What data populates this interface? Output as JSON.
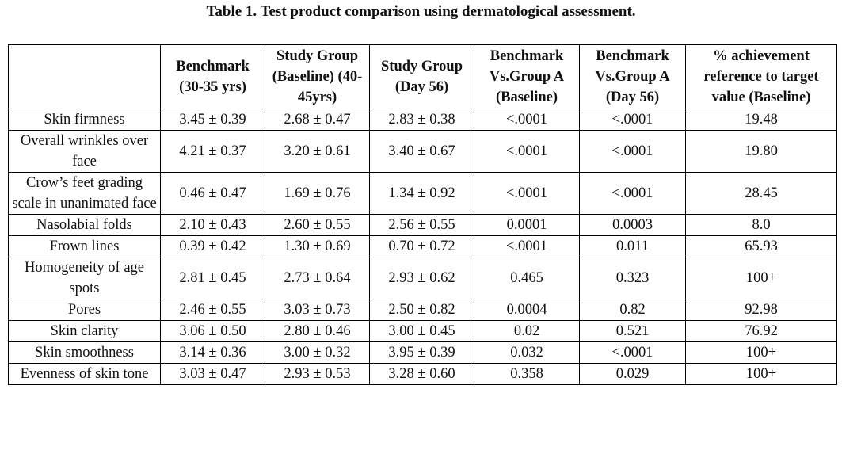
{
  "caption": "Table 1. Test product comparison using dermatological assessment.",
  "columns": [
    "",
    "Benchmark (30-35 yrs)",
    "Study Group (Baseline) (40-45yrs)",
    "Study Group (Day 56)",
    "Benchmark Vs.Group A (Baseline)",
    "Benchmark Vs.Group A (Day 56)",
    "% achievement reference to target value (Baseline)"
  ],
  "rows": [
    {
      "parameter": "Skin firmness",
      "benchmark": "3.45 ± 0.39",
      "baseline": "2.68 ± 0.47",
      "day56": "2.83 ± 0.38",
      "p_baseline": "<.0001",
      "p_day56": "<.0001",
      "achievement": "19.48"
    },
    {
      "parameter": "Overall wrinkles over face",
      "benchmark": "4.21 ± 0.37",
      "baseline": "3.20 ± 0.61",
      "day56": "3.40 ± 0.67",
      "p_baseline": "<.0001",
      "p_day56": "<.0001",
      "achievement": "19.80"
    },
    {
      "parameter": "Crow’s feet grading scale in unanimated face",
      "benchmark": "0.46 ± 0.47",
      "baseline": "1.69 ± 0.76",
      "day56": "1.34 ± 0.92",
      "p_baseline": "<.0001",
      "p_day56": "<.0001",
      "achievement": "28.45"
    },
    {
      "parameter": "Nasolabial folds",
      "benchmark": "2.10 ± 0.43",
      "baseline": "2.60 ± 0.55",
      "day56": "2.56 ± 0.55",
      "p_baseline": "0.0001",
      "p_day56": "0.0003",
      "achievement": "8.0"
    },
    {
      "parameter": "Frown lines",
      "benchmark": "0.39 ± 0.42",
      "baseline": "1.30 ± 0.69",
      "day56": "0.70 ± 0.72",
      "p_baseline": "<.0001",
      "p_day56": "0.011",
      "achievement": "65.93"
    },
    {
      "parameter": "Homogeneity of age spots",
      "benchmark": "2.81 ± 0.45",
      "baseline": "2.73 ± 0.64",
      "day56": "2.93 ± 0.62",
      "p_baseline": "0.465",
      "p_day56": "0.323",
      "achievement": "100+"
    },
    {
      "parameter": "Pores",
      "benchmark": "2.46 ± 0.55",
      "baseline": "3.03 ± 0.73",
      "day56": "2.50 ± 0.82",
      "p_baseline": "0.0004",
      "p_day56": "0.82",
      "achievement": "92.98"
    },
    {
      "parameter": "Skin clarity",
      "benchmark": "3.06 ± 0.50",
      "baseline": "2.80 ± 0.46",
      "day56": "3.00 ± 0.45",
      "p_baseline": "0.02",
      "p_day56": "0.521",
      "achievement": "76.92"
    },
    {
      "parameter": "Skin smoothness",
      "benchmark": "3.14 ± 0.36",
      "baseline": "3.00 ± 0.32",
      "day56": "3.95 ± 0.39",
      "p_baseline": "0.032",
      "p_day56": "<.0001",
      "achievement": "100+"
    },
    {
      "parameter": "Evenness of skin tone",
      "benchmark": "3.03 ± 0.47",
      "baseline": "2.93 ± 0.53",
      "day56": "3.28 ± 0.60",
      "p_baseline": "0.358",
      "p_day56": "0.029",
      "achievement": "100+"
    }
  ]
}
